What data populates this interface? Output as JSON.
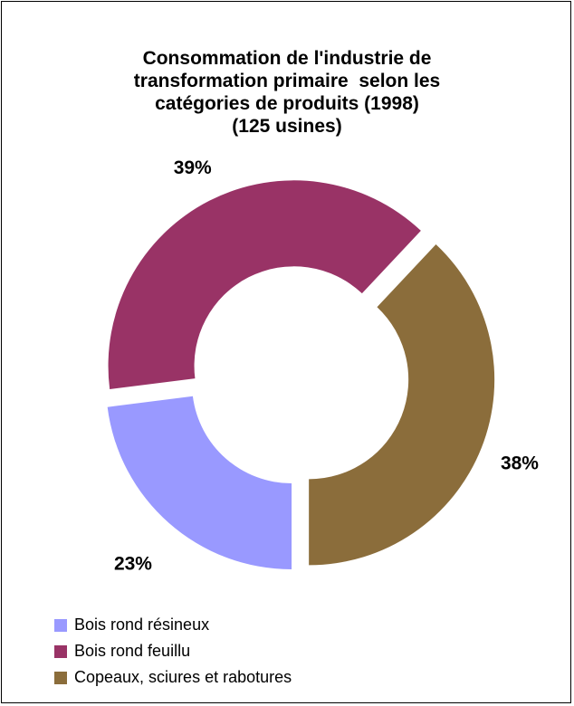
{
  "chart_data": {
    "type": "pie",
    "title_lines": [
      "Consommation de l'industrie de",
      "transformation primaire  selon les",
      "catégories de produits (1998)",
      "(125 usines)"
    ],
    "categories": [
      "Bois rond résineux",
      "Bois rond feuillu",
      "Copeaux, sciures et rabotures"
    ],
    "values": [
      23,
      39,
      38
    ],
    "data_labels": [
      "23%",
      "39%",
      "38%"
    ],
    "colors": [
      "#9999ff",
      "#993366",
      "#8b6d3b"
    ],
    "donut": true,
    "legend_position": "bottom-left"
  }
}
